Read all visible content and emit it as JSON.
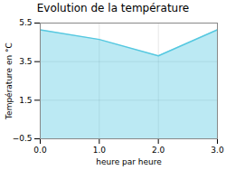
{
  "chart_data": {
    "type": "area",
    "title": "Evolution de la température",
    "xlabel": "heure par heure",
    "ylabel": "Température en °C",
    "x": [
      0,
      1,
      2,
      3
    ],
    "values": [
      5.15,
      4.65,
      3.8,
      5.15
    ],
    "color": "#55c8e0",
    "xlim": [
      0,
      3
    ],
    "xticks": [
      0,
      1,
      2,
      3
    ],
    "ylim": [
      -0.5,
      5.5
    ],
    "yticks": [
      -0.5,
      1.5,
      3.5,
      5.5
    ],
    "grid": true
  }
}
